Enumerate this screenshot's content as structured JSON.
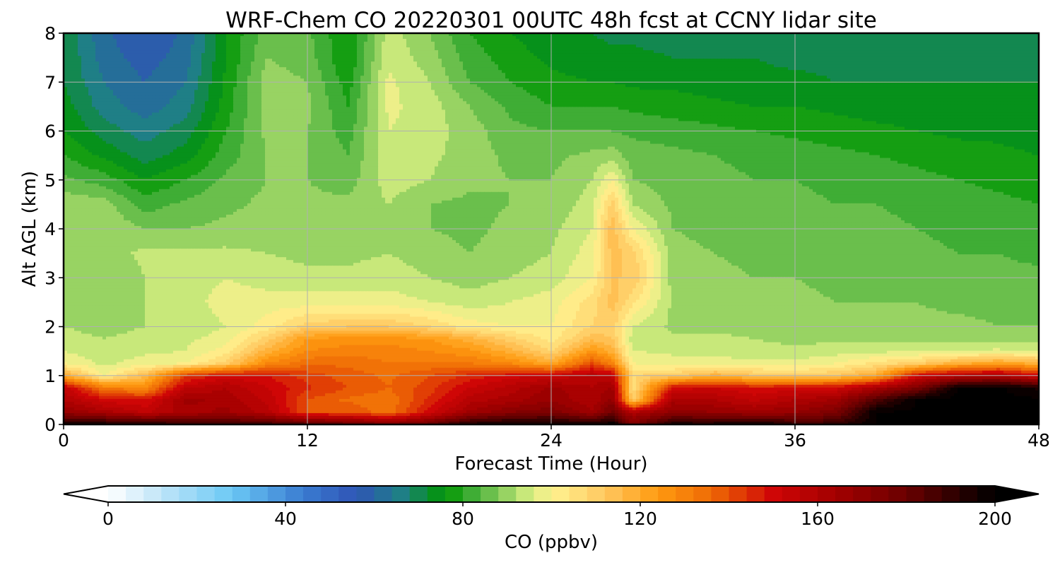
{
  "chart_data": {
    "type": "heatmap",
    "title": "WRF-Chem CO  20220301 00UTC 48h fcst at CCNY lidar site",
    "xlabel": "Forecast Time (Hour)",
    "ylabel": "Alt AGL (km)",
    "xlim": [
      0,
      48
    ],
    "ylim": [
      0,
      8
    ],
    "xticks": [
      "0",
      "12",
      "24",
      "36",
      "48"
    ],
    "yticks": [
      "0",
      "1",
      "2",
      "3",
      "4",
      "5",
      "6",
      "7",
      "8"
    ],
    "grid": true,
    "x": [
      0,
      2,
      4,
      6,
      8,
      10,
      12,
      14,
      16,
      18,
      20,
      22,
      24,
      26,
      27,
      28,
      30,
      32,
      34,
      36,
      38,
      40,
      42,
      44,
      46,
      48
    ],
    "y": [
      0,
      0.25,
      0.5,
      0.75,
      1,
      1.25,
      1.5,
      1.75,
      2,
      2.5,
      3,
      3.5,
      4,
      4.5,
      5,
      5.5,
      6,
      6.5,
      7,
      7.5,
      8
    ],
    "values": [
      [
        196,
        196,
        194,
        190,
        190,
        188,
        185,
        180,
        175,
        180,
        195,
        198,
        198,
        196,
        200,
        175,
        195,
        195,
        200,
        190,
        190,
        200,
        201,
        201,
        201,
        201
      ],
      [
        168,
        162,
        155,
        162,
        165,
        158,
        140,
        140,
        133,
        150,
        165,
        172,
        175,
        165,
        178,
        160,
        170,
        168,
        165,
        168,
        175,
        200,
        201,
        201,
        201,
        201
      ],
      [
        160,
        150,
        148,
        165,
        163,
        155,
        140,
        135,
        133,
        145,
        158,
        162,
        168,
        160,
        170,
        110,
        162,
        160,
        155,
        160,
        165,
        185,
        200,
        201,
        201,
        201
      ],
      [
        155,
        132,
        128,
        155,
        160,
        152,
        145,
        140,
        136,
        142,
        152,
        158,
        165,
        160,
        165,
        105,
        150,
        152,
        148,
        150,
        150,
        162,
        175,
        200,
        201,
        195
      ],
      [
        120,
        100,
        115,
        142,
        150,
        148,
        142,
        138,
        135,
        140,
        145,
        150,
        152,
        158,
        155,
        108,
        110,
        118,
        112,
        110,
        112,
        120,
        150,
        158,
        160,
        150
      ],
      [
        100,
        95,
        98,
        100,
        110,
        128,
        135,
        135,
        132,
        132,
        132,
        128,
        120,
        140,
        130,
        100,
        98,
        98,
        97,
        97,
        100,
        105,
        110,
        118,
        122,
        118
      ],
      [
        96,
        93,
        95,
        96,
        102,
        118,
        128,
        130,
        130,
        128,
        125,
        118,
        108,
        125,
        118,
        96,
        95,
        95,
        93,
        93,
        94,
        95,
        95,
        96,
        97,
        95
      ],
      [
        94,
        92,
        94,
        95,
        98,
        110,
        124,
        126,
        126,
        124,
        118,
        110,
        102,
        115,
        112,
        94,
        93,
        93,
        92,
        91,
        91,
        91,
        91,
        91,
        91,
        90
      ],
      [
        92,
        90,
        92,
        93,
        96,
        102,
        110,
        112,
        112,
        108,
        102,
        100,
        100,
        108,
        110,
        96,
        91,
        91,
        90,
        89,
        89,
        89,
        89,
        89,
        88,
        88
      ],
      [
        90,
        88,
        92,
        94,
        98,
        98,
        98,
        98,
        98,
        96,
        94,
        96,
        98,
        106,
        114,
        105,
        91,
        90,
        89,
        89,
        88,
        88,
        88,
        87,
        87,
        86
      ],
      [
        88,
        88,
        92,
        94,
        96,
        94,
        93,
        93,
        94,
        92,
        90,
        92,
        94,
        100,
        112,
        112,
        90,
        89,
        88,
        88,
        87,
        87,
        86,
        86,
        85,
        85
      ],
      [
        89,
        90,
        93,
        93,
        93,
        92,
        91,
        91,
        92,
        90,
        88,
        90,
        92,
        98,
        114,
        110,
        89,
        88,
        87,
        87,
        86,
        86,
        85,
        84,
        84,
        83
      ],
      [
        90,
        91,
        88,
        88,
        89,
        90,
        90,
        90,
        91,
        88,
        87,
        89,
        91,
        96,
        115,
        100,
        88,
        87,
        86,
        86,
        85,
        85,
        84,
        83,
        82,
        82
      ],
      [
        91,
        90,
        82,
        85,
        87,
        89,
        89,
        89,
        92,
        88,
        87,
        88,
        89,
        94,
        110,
        92,
        87,
        86,
        85,
        85,
        84,
        84,
        83,
        82,
        81,
        80
      ],
      [
        85,
        82,
        76,
        80,
        85,
        88,
        88,
        86,
        94,
        92,
        89,
        88,
        88,
        92,
        100,
        88,
        86,
        85,
        84,
        84,
        83,
        82,
        81,
        80,
        79,
        78
      ],
      [
        80,
        75,
        70,
        74,
        82,
        88,
        88,
        84,
        95,
        93,
        90,
        87,
        87,
        89,
        90,
        86,
        85,
        84,
        83,
        82,
        81,
        80,
        79,
        78,
        77,
        76
      ],
      [
        76,
        70,
        66,
        70,
        80,
        89,
        88,
        82,
        96,
        94,
        90,
        85,
        84,
        84,
        84,
        83,
        82,
        81,
        80,
        79,
        78,
        77,
        76,
        75,
        75,
        74
      ],
      [
        74,
        66,
        62,
        66,
        78,
        90,
        89,
        80,
        97,
        94,
        88,
        83,
        80,
        80,
        80,
        79,
        78,
        77,
        76,
        76,
        75,
        74,
        74,
        73,
        73,
        73
      ],
      [
        72,
        64,
        60,
        64,
        77,
        90,
        88,
        78,
        97,
        92,
        84,
        80,
        77,
        76,
        76,
        75,
        75,
        74,
        73,
        73,
        72,
        72,
        72,
        72,
        72,
        72
      ],
      [
        72,
        62,
        58,
        62,
        76,
        88,
        86,
        76,
        95,
        90,
        82,
        78,
        75,
        74,
        73,
        73,
        72,
        72,
        72,
        71,
        71,
        71,
        71,
        71,
        71,
        71
      ],
      [
        71,
        61,
        56,
        61,
        76,
        86,
        85,
        76,
        94,
        88,
        80,
        76,
        73,
        72,
        71,
        71,
        70,
        70,
        70,
        70,
        70,
        70,
        70,
        70,
        70,
        70
      ]
    ],
    "colorbar": {
      "label": "CO  (ppbv)",
      "min": 0,
      "max": 200,
      "step": 4,
      "ticks": [
        "0",
        "40",
        "80",
        "120",
        "160",
        "200"
      ],
      "extend": "both",
      "anchors": [
        {
          "v": 0,
          "color": "#ffffff"
        },
        {
          "v": 12,
          "color": "#bfe4f8"
        },
        {
          "v": 28,
          "color": "#6ac8f5"
        },
        {
          "v": 44,
          "color": "#3a7bd0"
        },
        {
          "v": 56,
          "color": "#2f55b5"
        },
        {
          "v": 66,
          "color": "#1f7f86"
        },
        {
          "v": 76,
          "color": "#009600"
        },
        {
          "v": 82,
          "color": "#3fad35"
        },
        {
          "v": 88,
          "color": "#80c858"
        },
        {
          "v": 94,
          "color": "#c8e87a"
        },
        {
          "v": 100,
          "color": "#fff391"
        },
        {
          "v": 112,
          "color": "#ffc860"
        },
        {
          "v": 124,
          "color": "#ff9a10"
        },
        {
          "v": 136,
          "color": "#ee6a05"
        },
        {
          "v": 150,
          "color": "#cf0606"
        },
        {
          "v": 165,
          "color": "#a00000"
        },
        {
          "v": 180,
          "color": "#6a0000"
        },
        {
          "v": 192,
          "color": "#280000"
        },
        {
          "v": 200,
          "color": "#000000"
        }
      ]
    }
  }
}
